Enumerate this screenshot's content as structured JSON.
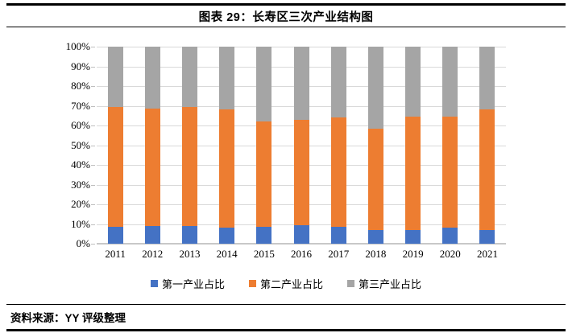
{
  "header": {
    "title": "图表 29：长寿区三次产业结构图"
  },
  "footer": {
    "source": "资料来源：YY 评级整理"
  },
  "chart_data": {
    "type": "bar",
    "stacked": true,
    "percent_stacked": true,
    "title": "图表 29：长寿区三次产业结构图",
    "xlabel": "",
    "ylabel": "",
    "ylim": [
      0,
      100
    ],
    "yticks": [
      "0%",
      "10%",
      "20%",
      "30%",
      "40%",
      "50%",
      "60%",
      "70%",
      "80%",
      "90%",
      "100%"
    ],
    "grid": true,
    "legend_position": "bottom",
    "categories": [
      "2011",
      "2012",
      "2013",
      "2014",
      "2015",
      "2016",
      "2017",
      "2018",
      "2019",
      "2020",
      "2021"
    ],
    "series": [
      {
        "name": "第一产业占比",
        "color": "#4472c4",
        "values": [
          8.5,
          9.0,
          9.0,
          8.0,
          8.5,
          9.5,
          8.5,
          7.0,
          7.0,
          8.0,
          7.0
        ]
      },
      {
        "name": "第二产业占比",
        "color": "#ed7d31",
        "values": [
          61.0,
          59.5,
          60.5,
          60.0,
          53.5,
          53.5,
          55.5,
          51.5,
          57.5,
          56.5,
          61.0
        ]
      },
      {
        "name": "第三产业占比",
        "color": "#a5a5a5",
        "values": [
          30.5,
          31.5,
          30.5,
          32.0,
          38.0,
          37.0,
          36.0,
          41.5,
          35.5,
          35.5,
          32.0
        ]
      }
    ]
  },
  "style_colors": {
    "gridline": "#d9d9d9",
    "axis_line": "#c8c8c8",
    "rule": "#000000"
  }
}
